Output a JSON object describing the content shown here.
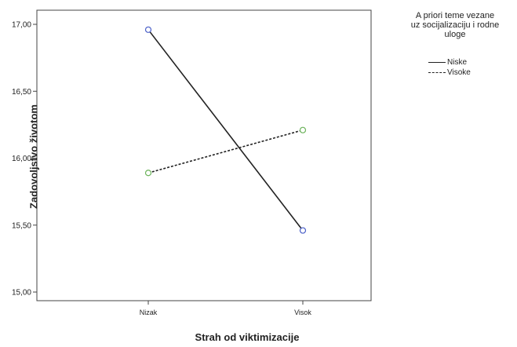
{
  "chart_data": {
    "type": "line",
    "categories": [
      "Nizak",
      "Visok"
    ],
    "series": [
      {
        "name": "Niske",
        "values": [
          16.96,
          15.46
        ],
        "line_style": "solid",
        "marker_color": "#4a5fc8"
      },
      {
        "name": "Visoke",
        "values": [
          15.89,
          16.21
        ],
        "line_style": "dashed",
        "marker_color": "#6bb35a"
      }
    ],
    "xlabel": "Strah od viktimizacije",
    "ylabel": "Zadovoljstvo životom",
    "ylim": [
      15.0,
      17.0
    ],
    "yticks": [
      "15,00",
      "15,50",
      "16,00",
      "16,50",
      "17,00"
    ],
    "legend_title": [
      "A priori teme vezane",
      "uz socijalizaciju i rodne",
      "uloge"
    ],
    "legend_position": "top-right",
    "grid": false
  }
}
